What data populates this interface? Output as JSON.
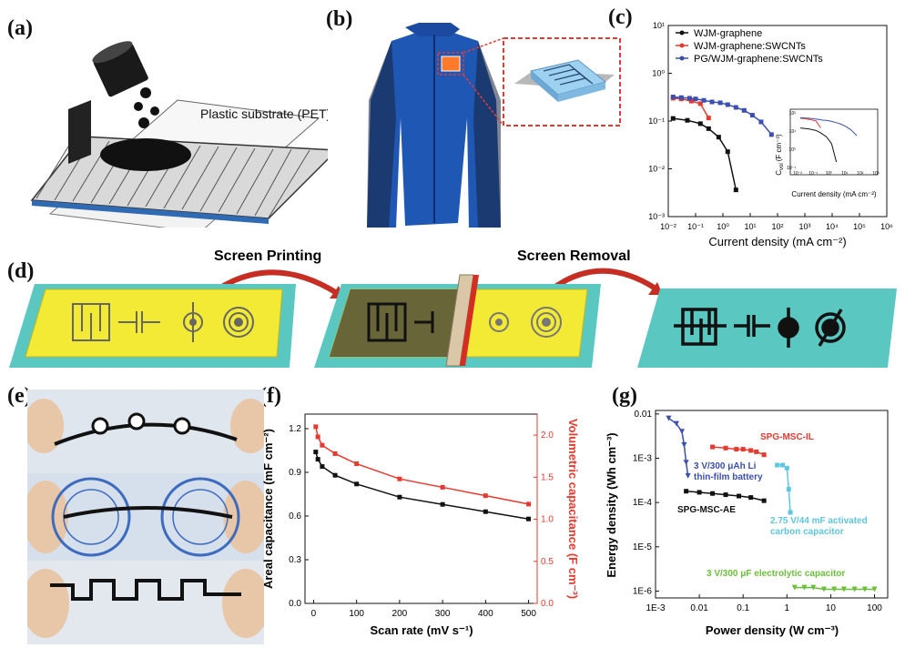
{
  "panels": {
    "a": {
      "label": "(a)",
      "substrate_label": "Plastic substrate (PET)"
    },
    "b": {
      "label": "(b)"
    },
    "c": {
      "label": "(c)"
    },
    "d": {
      "label": "(d)",
      "step1": "Screen Printing",
      "step2": "Screen Removal"
    },
    "e": {
      "label": "(e)"
    },
    "f": {
      "label": "(f)"
    },
    "g": {
      "label": "(g)"
    }
  },
  "chart_data": [
    {
      "id": "c",
      "type": "line",
      "xlabel": "Current density (mA cm⁻²)",
      "ylabel": "",
      "xscale": "log",
      "yscale": "log",
      "xlim": [
        0.01,
        1000000
      ],
      "ylim": [
        0.001,
        100
      ],
      "x_ticks": [
        "10⁻²",
        "10⁻¹",
        "10⁰",
        "10¹",
        "10²",
        "10³",
        "10⁴",
        "10⁵",
        "10⁶"
      ],
      "y_ticks": [
        "10⁻³",
        "10⁻²",
        "10⁻¹",
        "10⁰",
        "10¹"
      ],
      "legend_position": "top-left",
      "series": [
        {
          "name": "WJM-graphene",
          "color": "#111111",
          "x": [
            0.015,
            0.05,
            0.15,
            0.3,
            0.7,
            1.5,
            3.0
          ],
          "y": [
            0.37,
            0.33,
            0.27,
            0.2,
            0.12,
            0.05,
            0.005
          ]
        },
        {
          "name": "WJM-graphene:SWCNTs",
          "color": "#e8392f",
          "x": [
            0.015,
            0.03,
            0.07,
            0.15,
            0.3
          ],
          "y": [
            1.25,
            1.2,
            1.05,
            0.9,
            0.38
          ]
        },
        {
          "name": "PG/WJM-graphene:SWCNTs",
          "color": "#3b4fb3",
          "x": [
            0.015,
            0.03,
            0.06,
            0.1,
            0.2,
            0.4,
            0.8,
            1.5,
            3.0,
            6.0,
            12,
            25,
            60
          ],
          "y": [
            1.35,
            1.3,
            1.25,
            1.2,
            1.1,
            1.0,
            0.95,
            0.85,
            0.72,
            0.6,
            0.45,
            0.3,
            0.14
          ]
        }
      ],
      "inset": {
        "ylabel": "C",
        "ylabel_sub": "vol",
        "ylabel_unit": "(F cm⁻³)",
        "xlabel": "Current density (mA cm⁻²)",
        "x_ticks": [
          "10⁻²",
          "10⁻¹",
          "10⁰",
          "10¹",
          "10²",
          "10³"
        ],
        "y_ticks": [
          "10⁻¹",
          "10⁰",
          "10¹",
          "10²"
        ]
      }
    },
    {
      "id": "f",
      "type": "line",
      "xlabel": "Scan rate (mV s⁻¹)",
      "ylabel": "Areal capacitance (mF cm⁻²)",
      "y2label": "Volumetric capacitance (F cm⁻³)",
      "xlim": [
        -20,
        520
      ],
      "ylim": [
        0.0,
        1.3
      ],
      "y2lim": [
        0.0,
        2.25
      ],
      "x_ticks": [
        0,
        100,
        200,
        300,
        400,
        500
      ],
      "y_ticks": [
        0.0,
        0.3,
        0.6,
        0.9,
        1.2
      ],
      "y2_ticks": [
        0.0,
        0.5,
        1.0,
        1.5,
        2.0
      ],
      "series": [
        {
          "name": "",
          "axis": "left",
          "color": "#111111",
          "x": [
            5,
            10,
            20,
            50,
            100,
            200,
            300,
            400,
            500
          ],
          "y": [
            1.04,
            0.99,
            0.94,
            0.88,
            0.82,
            0.73,
            0.68,
            0.63,
            0.58
          ]
        },
        {
          "name": "",
          "axis": "right",
          "color": "#e8392f",
          "x": [
            5,
            10,
            20,
            50,
            100,
            200,
            300,
            400,
            500
          ],
          "y": [
            2.1,
            1.98,
            1.88,
            1.78,
            1.66,
            1.48,
            1.38,
            1.28,
            1.18
          ]
        }
      ]
    },
    {
      "id": "g",
      "type": "scatter",
      "xlabel": "Power density (W cm⁻³)",
      "ylabel": "Energy density (Wh cm⁻³)",
      "xscale": "log",
      "yscale": "log",
      "xlim": [
        0.001,
        200
      ],
      "ylim": [
        7e-07,
        0.012
      ],
      "x_ticks": [
        "1E-3",
        "0.01",
        "0.1",
        "1",
        "10",
        "100"
      ],
      "y_ticks": [
        "1E-6",
        "1E-5",
        "1E-4",
        "1E-3",
        "0.01"
      ],
      "series": [
        {
          "name": "SPG-MSC-IL",
          "color": "#e8392f",
          "x": [
            0.02,
            0.04,
            0.07,
            0.1,
            0.15,
            0.2,
            0.3
          ],
          "y": [
            0.0018,
            0.0017,
            0.0016,
            0.0016,
            0.0015,
            0.0014,
            0.0012
          ]
        },
        {
          "name": "3 V/300 μAh Li thin-film battery",
          "color": "#3b4fb3",
          "x": [
            0.002,
            0.003,
            0.004,
            0.0045,
            0.005,
            0.0055
          ],
          "y": [
            0.008,
            0.006,
            0.004,
            0.002,
            0.0008,
            0.0004
          ]
        },
        {
          "name": "SPG-MSC-AE",
          "color": "#111111",
          "x": [
            0.005,
            0.01,
            0.02,
            0.04,
            0.08,
            0.15,
            0.3
          ],
          "y": [
            0.00018,
            0.00017,
            0.00016,
            0.00015,
            0.00014,
            0.00013,
            0.00011
          ]
        },
        {
          "name": "2.75 V/44 mF activated carbon capacitor",
          "color": "#5ec6e0",
          "x": [
            0.6,
            0.8,
            1.0,
            1.1,
            1.2
          ],
          "y": [
            0.0007,
            0.0007,
            0.0006,
            0.0002,
            6e-05
          ]
        },
        {
          "name": "3 V/300 μF electrolytic capacitor",
          "color": "#6abf3a",
          "x": [
            1.5,
            2.5,
            4,
            7,
            12,
            20,
            35,
            60,
            100
          ],
          "y": [
            1.2e-06,
            1.2e-06,
            1.2e-06,
            1.1e-06,
            1.1e-06,
            1.1e-06,
            1.1e-06,
            1.1e-06,
            1.1e-06
          ]
        }
      ],
      "labels": {
        "il": "SPG-MSC-IL",
        "li1": "3 V/300 μAh Li",
        "li2": "thin-film battery",
        "ae": "SPG-MSC-AE",
        "ac1": "2.75 V/44 mF activated",
        "ac2": "carbon capacitor",
        "ec": "3 V/300 μF electrolytic capacitor"
      }
    }
  ]
}
